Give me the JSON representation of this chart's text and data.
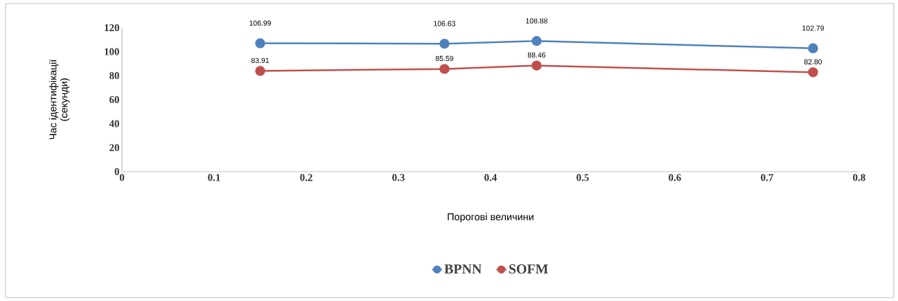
{
  "chart_data": {
    "type": "line",
    "xlabel": "Порогові величини",
    "ylabel": "Час ідентифікації\n(секунди)",
    "x": [
      0.15,
      0.35,
      0.45,
      0.75
    ],
    "series": [
      {
        "name": "BPNN",
        "color": "#4f81bd",
        "values": [
          106.99,
          106.63,
          108.88,
          102.79
        ],
        "value_labels": [
          "106.99",
          "106.63",
          "108.88",
          "102.79"
        ]
      },
      {
        "name": "SOFM",
        "color": "#c0504d",
        "values": [
          83.91,
          85.59,
          88.46,
          82.8
        ],
        "value_labels": [
          "83.91",
          "85.59",
          "88.46",
          "82.80"
        ]
      }
    ],
    "xlim": [
      0,
      0.8
    ],
    "xticks": [
      0,
      0.1,
      0.2,
      0.3,
      0.4,
      0.5,
      0.6,
      0.7,
      0.8
    ],
    "ylim": [
      0,
      120
    ],
    "yticks": [
      0,
      20,
      40,
      60,
      80,
      100,
      120
    ],
    "grid": false,
    "legend": "bottom",
    "marker": "circle",
    "line_style": "solid"
  }
}
